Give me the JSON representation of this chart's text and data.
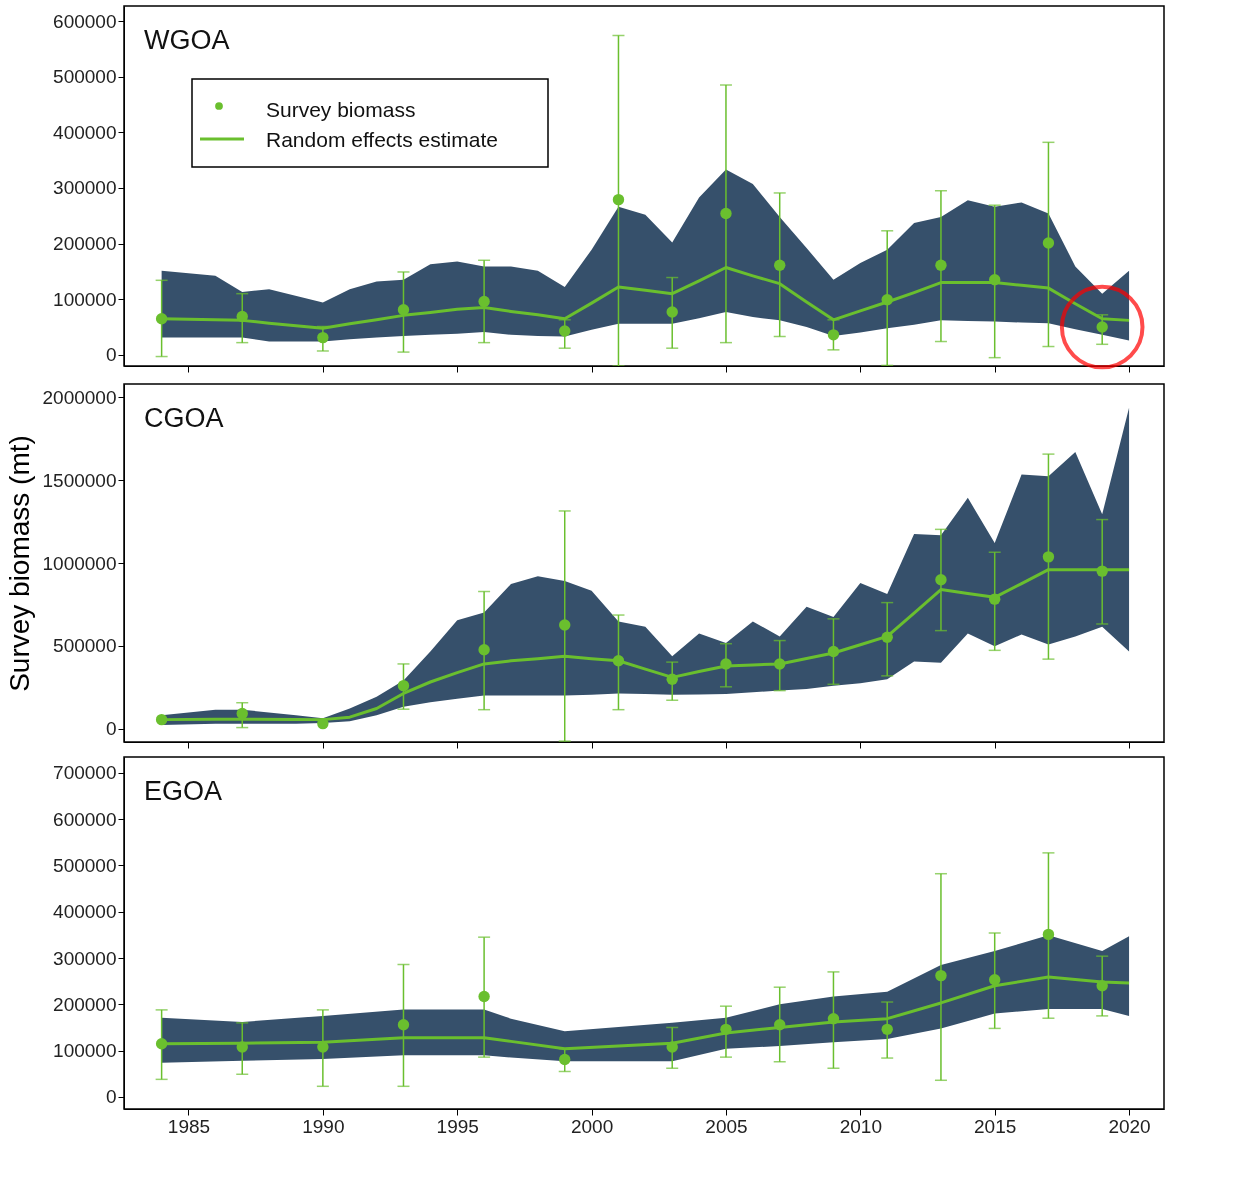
{
  "chart_data": [
    {
      "type": "line",
      "title": "WGOA",
      "xlim": [
        1982.6,
        2021.3
      ],
      "xticks": [
        1985,
        1990,
        1995,
        2000,
        2005,
        2010,
        2015,
        2020
      ],
      "ylim": [
        -20000,
        627000
      ],
      "yticks": [
        0,
        100000,
        200000,
        300000,
        400000,
        500000,
        600000
      ],
      "tick_labels": "y",
      "grid": false,
      "legend": "top left",
      "series": [
        {
          "name": "Random effects estimate",
          "color": "#6abf2e",
          "line_style": "solid",
          "x": [
            1984,
            1986,
            1987,
            1988,
            1990,
            1991,
            1992,
            1993,
            1994,
            1995,
            1996,
            1997,
            1998,
            1999,
            2000,
            2001,
            2002,
            2003,
            2004,
            2005,
            2006,
            2007,
            2008,
            2009,
            2010,
            2011,
            2012,
            2013,
            2014,
            2015,
            2016,
            2017,
            2018,
            2019,
            2020
          ],
          "values": [
            65000,
            63000,
            62000,
            57000,
            48000,
            56000,
            63000,
            71000,
            76000,
            82000,
            85000,
            78000,
            72000,
            65000,
            93000,
            122000,
            116000,
            110000,
            133000,
            157000,
            142000,
            128000,
            95000,
            63000,
            79000,
            95000,
            112000,
            130000,
            130000,
            130000,
            125000,
            120000,
            92000,
            65000,
            62000
          ],
          "upper": [
            151000,
            142000,
            113000,
            118000,
            94000,
            118000,
            132000,
            135000,
            163000,
            168000,
            159000,
            159000,
            151000,
            122000,
            189000,
            266000,
            252000,
            202000,
            283000,
            333000,
            307000,
            248000,
            192000,
            135000,
            165000,
            189000,
            237000,
            248000,
            278000,
            266000,
            274000,
            254000,
            159000,
            110000,
            151000
          ],
          "lower": [
            31000,
            31000,
            31000,
            24000,
            24000,
            28000,
            31000,
            34000,
            36000,
            38000,
            41000,
            36000,
            34000,
            33000,
            45000,
            56000,
            56000,
            56000,
            66000,
            77000,
            68000,
            62000,
            50000,
            34000,
            40000,
            48000,
            54000,
            62000,
            61000,
            60000,
            58000,
            57000,
            46000,
            36000,
            26000
          ]
        },
        {
          "type": "scatter",
          "name": "Survey biomass",
          "color": "#6abf2e",
          "marker": "circle",
          "x": [
            1984,
            1987,
            1990,
            1993,
            1996,
            1999,
            2001,
            2003,
            2005,
            2007,
            2009,
            2011,
            2013,
            2015,
            2017,
            2019
          ],
          "values": [
            65000,
            69000,
            31000,
            81000,
            96000,
            43000,
            279000,
            77000,
            254000,
            161000,
            36000,
            99000,
            161000,
            135000,
            201000,
            50000
          ],
          "errors": [
            [
              -3000,
              134000
            ],
            [
              22000,
              110000
            ],
            [
              7000,
              51000
            ],
            [
              5000,
              149000
            ],
            [
              22000,
              170000
            ],
            [
              12000,
              63000
            ],
            [
              -20000,
              574000
            ],
            [
              12000,
              139000
            ],
            [
              22000,
              485000
            ],
            [
              33000,
              291000
            ],
            [
              9000,
              63000
            ],
            [
              -19000,
              223000
            ],
            [
              24000,
              295000
            ],
            [
              -5000,
              269000
            ],
            [
              15000,
              382000
            ],
            [
              19000,
              72000
            ]
          ]
        },
        {
          "type": "scatter",
          "color": "#ff0000",
          "marker": "circle",
          "x": [
            2019
          ],
          "values": [
            50000
          ]
        }
      ]
    },
    {
      "type": "line",
      "title": "CGOA",
      "ylabel": "Survey biomass (mt)",
      "xlim": [
        1982.6,
        2021.3
      ],
      "xticks": [
        1985,
        1990,
        1995,
        2000,
        2005,
        2010,
        2015,
        2020
      ],
      "ylim": [
        -80000,
        2080000
      ],
      "yticks": [
        0,
        500000,
        1000000,
        1500000,
        2000000
      ],
      "tick_labels": "y",
      "grid": false,
      "series": [
        {
          "color": "#6abf2e",
          "line_style": "solid",
          "x": [
            1984,
            1986,
            1987,
            1989,
            1990,
            1991,
            1992,
            1993,
            1994,
            1995,
            1996,
            1997,
            1998,
            1999,
            2000,
            2001,
            2002,
            2003,
            2004,
            2005,
            2006,
            2007,
            2008,
            2009,
            2010,
            2011,
            2012,
            2013,
            2014,
            2015,
            2016,
            2017,
            2018,
            2019,
            2020
          ],
          "values": [
            55000,
            57000,
            58000,
            56000,
            55000,
            70000,
            122000,
            213000,
            282000,
            339000,
            391000,
            410000,
            423000,
            437000,
            423000,
            410000,
            360000,
            310000,
            345000,
            379000,
            385000,
            391000,
            424000,
            457000,
            507000,
            557000,
            698000,
            840000,
            816000,
            793000,
            876000,
            960000,
            960000,
            960000,
            960000
          ],
          "upper": [
            82000,
            115000,
            115000,
            82000,
            63000,
            122000,
            193000,
            291000,
            466000,
            655000,
            701000,
            873000,
            920000,
            891000,
            833000,
            647000,
            615000,
            437000,
            575000,
            517000,
            647000,
            557000,
            736000,
            674000,
            879000,
            813000,
            1175000,
            1167000,
            1393000,
            1121000,
            1534000,
            1523000,
            1669000,
            1294000,
            1937000
          ],
          "lower": [
            23000,
            30000,
            30000,
            30000,
            34000,
            45000,
            82000,
            132000,
            160000,
            181000,
            201000,
            201000,
            201000,
            201000,
            205000,
            213000,
            210000,
            205000,
            207000,
            209000,
            220000,
            230000,
            240000,
            260000,
            275000,
            299000,
            406000,
            398000,
            575000,
            497000,
            569000,
            509000,
            557000,
            615000,
            466000
          ]
        },
        {
          "type": "scatter",
          "color": "#6abf2e",
          "marker": "circle",
          "x": [
            1984,
            1987,
            1990,
            1993,
            1996,
            1999,
            2001,
            2003,
            2005,
            2007,
            2009,
            2011,
            2013,
            2015,
            2017,
            2019
          ],
          "values": [
            55000,
            92000,
            31000,
            260000,
            477000,
            626000,
            410000,
            299000,
            391000,
            391000,
            466000,
            552000,
            899000,
            782000,
            1037000,
            951000
          ],
          "errors": [
            null,
            [
              7000,
              157000
            ],
            null,
            [
              118000,
              391000
            ],
            [
              115000,
              828000
            ],
            [
              -75000,
              1314000
            ],
            [
              115000,
              686000
            ],
            [
              172000,
              402000
            ],
            [
              253000,
              513000
            ],
            [
              230000,
              532000
            ],
            [
              268000,
              663000
            ],
            [
              319000,
              761000
            ],
            [
              592000,
              1203000
            ],
            [
              473000,
              1065000
            ],
            [
              420000,
              1657000
            ],
            [
              632000,
              1262000
            ]
          ]
        }
      ]
    },
    {
      "type": "line",
      "title": "EGOA",
      "xlim": [
        1982.6,
        2021.3
      ],
      "xticks": [
        1985,
        1990,
        1995,
        2000,
        2005,
        2010,
        2015,
        2020
      ],
      "ylim": [
        -26000,
        734000
      ],
      "yticks": [
        0,
        100000,
        200000,
        300000,
        400000,
        500000,
        600000,
        700000
      ],
      "grid": false,
      "series": [
        {
          "color": "#6abf2e",
          "line_style": "solid",
          "x": [
            1984,
            1987,
            1990,
            1993,
            1996,
            1997,
            1999,
            2003,
            2005,
            2007,
            2009,
            2011,
            2013,
            2015,
            2017,
            2019,
            2020
          ],
          "values": [
            115000,
            116000,
            118000,
            128000,
            128000,
            120000,
            104000,
            116000,
            138000,
            150000,
            162000,
            169000,
            203000,
            240000,
            259000,
            248000,
            246000
          ],
          "upper": [
            171000,
            162000,
            175000,
            189000,
            189000,
            169000,
            142000,
            160000,
            171000,
            200000,
            217000,
            227000,
            285000,
            315000,
            349000,
            315000,
            347000
          ],
          "lower": [
            74000,
            78000,
            82000,
            90000,
            90000,
            85000,
            77000,
            77000,
            104000,
            110000,
            118000,
            125000,
            148000,
            180000,
            190000,
            190000,
            175000
          ]
        },
        {
          "type": "scatter",
          "color": "#6abf2e",
          "marker": "circle",
          "x": [
            1984,
            1987,
            1990,
            1993,
            1996,
            1999,
            2003,
            2005,
            2007,
            2009,
            2011,
            2013,
            2015,
            2017,
            2019
          ],
          "values": [
            115000,
            108000,
            108000,
            156000,
            217000,
            81000,
            108000,
            146000,
            156000,
            169000,
            146000,
            262000,
            253000,
            351000,
            240000
          ],
          "errors": [
            [
              38000,
              188000
            ],
            [
              49000,
              160000
            ],
            [
              23000,
              188000
            ],
            [
              23000,
              286000
            ],
            [
              86000,
              345000
            ],
            [
              55000,
              104000
            ],
            [
              62000,
              150000
            ],
            [
              86000,
              196000
            ],
            [
              76000,
              237000
            ],
            [
              62000,
              270000
            ],
            [
              84000,
              205000
            ],
            [
              36000,
              482000
            ],
            [
              148000,
              354000
            ],
            [
              170000,
              527000
            ],
            [
              175000,
              304000
            ]
          ]
        }
      ]
    }
  ]
}
